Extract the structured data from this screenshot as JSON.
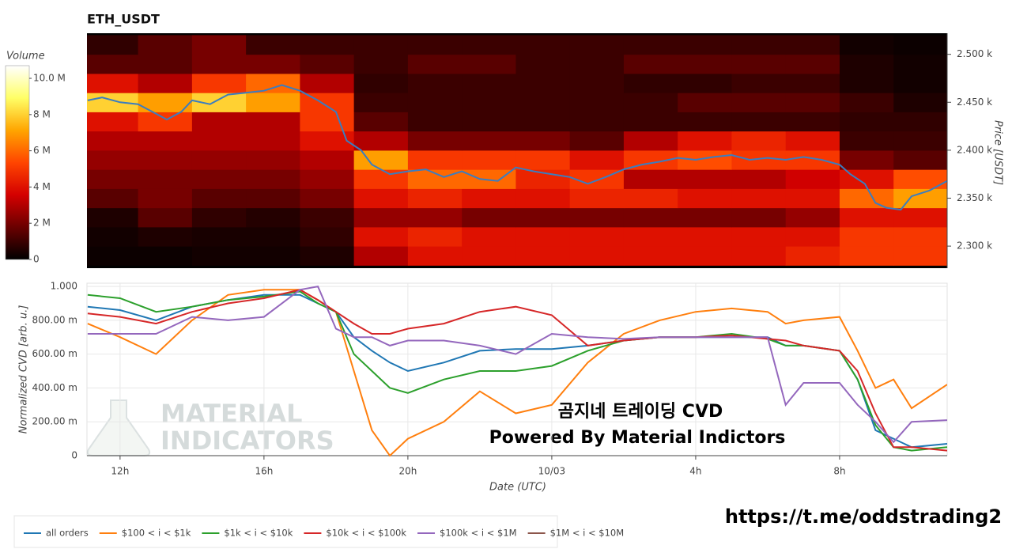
{
  "chart_data": [
    {
      "type": "heatmap",
      "title": "ETH_USDT",
      "ylabel": "Price [USDT]",
      "xlim": [
        11.08,
        34.99
      ],
      "ylim": [
        2277,
        2522
      ],
      "yticks": [
        {
          "value": 2300,
          "label": "2.300 k"
        },
        {
          "value": 2350,
          "label": "2.350 k"
        },
        {
          "value": 2400,
          "label": "2.400 k"
        },
        {
          "value": 2450,
          "label": "2.450 k"
        },
        {
          "value": 2500,
          "label": "2.500 k"
        }
      ],
      "x_bins": [
        11,
        12.5,
        14,
        15.5,
        17,
        18.5,
        20,
        21.5,
        23,
        24.5,
        26,
        27.5,
        29,
        30.5,
        32,
        33.5,
        35
      ],
      "y_bins": [
        2280,
        2300,
        2320,
        2340,
        2360,
        2380,
        2400,
        2420,
        2440,
        2460,
        2480,
        2500,
        2520
      ],
      "z": [
        [
          200000.0,
          200000.0,
          300000.0,
          300000.0,
          500000.0,
          3000000.0,
          4000000.0,
          4000000.0,
          4000000.0,
          4000000.0,
          4000000.0,
          4000000.0,
          4000000.0,
          4500000.0,
          5000000.0,
          5000000.0
        ],
        [
          300000.0,
          500000.0,
          400000.0,
          400000.0,
          800000.0,
          4000000.0,
          4500000.0,
          4000000.0,
          4000000.0,
          4000000.0,
          4000000.0,
          4000000.0,
          4000000.0,
          4000000.0,
          5000000.0,
          5000000.0
        ],
        [
          500000.0,
          1500000.0,
          800000.0,
          600000.0,
          1000000.0,
          2500000.0,
          2500000.0,
          2000000.0,
          2000000.0,
          2000000.0,
          2000000.0,
          2000000.0,
          2000000.0,
          2500000.0,
          4000000.0,
          4000000.0
        ],
        [
          1500000.0,
          2000000.0,
          1500000.0,
          1500000.0,
          2000000.0,
          4000000.0,
          4500000.0,
          4000000.0,
          4000000.0,
          4500000.0,
          4500000.0,
          4000000.0,
          4000000.0,
          4000000.0,
          6000000.0,
          7000000.0
        ],
        [
          2000000.0,
          2000000.0,
          2000000.0,
          2000000.0,
          2500000.0,
          5000000.0,
          6000000.0,
          6000000.0,
          4500000.0,
          5000000.0,
          3000000.0,
          3000000.0,
          3000000.0,
          3500000.0,
          4000000.0,
          5500000.0
        ],
        [
          2500000.0,
          2500000.0,
          2500000.0,
          2500000.0,
          3000000.0,
          7000000.0,
          5000000.0,
          5000000.0,
          5000000.0,
          4000000.0,
          5000000.0,
          5500000.0,
          5000000.0,
          5000000.0,
          2000000.0,
          1500000.0
        ],
        [
          3000000.0,
          3000000.0,
          3000000.0,
          3000000.0,
          4000000.0,
          3000000.0,
          2000000.0,
          2000000.0,
          2000000.0,
          1500000.0,
          3000000.0,
          4000000.0,
          4500000.0,
          4000000.0,
          1000000.0,
          1000000.0
        ],
        [
          4000000.0,
          5000000.0,
          3000000.0,
          3000000.0,
          5000000.0,
          1500000.0,
          1000000.0,
          1000000.0,
          1000000.0,
          1000000.0,
          1000000.0,
          1000000.0,
          1000000.0,
          1000000.0,
          800000.0,
          800000.0
        ],
        [
          8000000.0,
          7000000.0,
          8000000.0,
          7000000.0,
          5000000.0,
          1000000.0,
          1000000.0,
          1000000.0,
          1000000.0,
          1000000.0,
          1000000.0,
          1500000.0,
          1500000.0,
          1500000.0,
          1000000.0,
          500000.0
        ],
        [
          4000000.0,
          3000000.0,
          5000000.0,
          6000000.0,
          3000000.0,
          800000.0,
          1000000.0,
          1000000.0,
          1000000.0,
          1000000.0,
          800000.0,
          800000.0,
          1000000.0,
          1000000.0,
          500000.0,
          300000.0
        ],
        [
          1500000.0,
          1500000.0,
          2000000.0,
          2000000.0,
          1500000.0,
          1000000.0,
          1500000.0,
          1500000.0,
          1000000.0,
          1000000.0,
          1500000.0,
          1500000.0,
          1500000.0,
          1500000.0,
          500000.0,
          300000.0
        ],
        [
          800000.0,
          1500000.0,
          2000000.0,
          1000000.0,
          1000000.0,
          1000000.0,
          1000000.0,
          1000000.0,
          1000000.0,
          1000000.0,
          1000000.0,
          1000000.0,
          1000000.0,
          1000000.0,
          300000.0,
          200000.0
        ]
      ],
      "colorscale": [
        "#000000",
        "#6a0000",
        "#d40000",
        "#ff4500",
        "#ffa500",
        "#ffff66",
        "#ffffff"
      ],
      "colorbar": {
        "title": "Volume",
        "lim": [
          0,
          10700000
        ],
        "ticks": [
          0,
          {
            "value": 2000000,
            "label": "2 M"
          },
          {
            "value": 4000000,
            "label": "4 M"
          },
          {
            "value": 6000000,
            "label": "6 M"
          },
          {
            "value": 8000000,
            "label": "8 M"
          },
          {
            "value": 10000000,
            "label": "10.0 M"
          }
        ]
      },
      "line": {
        "color": "#3a7dc0",
        "x": [
          11.1,
          11.5,
          12,
          12.5,
          13,
          13.3,
          13.7,
          14,
          14.5,
          15,
          15.5,
          16,
          16.5,
          17,
          17.5,
          18,
          18.3,
          18.7,
          19,
          19.5,
          20,
          20.5,
          21,
          21.5,
          22,
          22.5,
          23,
          23.5,
          24,
          24.5,
          25,
          25.5,
          26,
          26.5,
          27,
          27.5,
          28,
          28.5,
          29,
          29.5,
          30,
          30.5,
          31,
          31.5,
          32,
          32.3,
          32.7,
          33,
          33.3,
          33.7,
          34,
          34.5,
          34.99
        ],
        "y": [
          2452,
          2455,
          2450,
          2448,
          2438,
          2432,
          2440,
          2452,
          2448,
          2458,
          2460,
          2462,
          2468,
          2462,
          2452,
          2440,
          2410,
          2400,
          2385,
          2375,
          2378,
          2380,
          2372,
          2378,
          2370,
          2368,
          2382,
          2378,
          2375,
          2372,
          2365,
          2372,
          2380,
          2385,
          2388,
          2392,
          2390,
          2393,
          2395,
          2390,
          2392,
          2390,
          2393,
          2390,
          2385,
          2375,
          2365,
          2345,
          2340,
          2338,
          2352,
          2358,
          2368
        ]
      }
    },
    {
      "type": "line",
      "xlabel": "Date (UTC)",
      "ylabel": "Normalized CVD [arb. u.]",
      "grid": true,
      "legend": "bottom-left",
      "xlim": [
        11.08,
        34.99
      ],
      "ylim": [
        0,
        1.019
      ],
      "xticks": [
        {
          "value": 12,
          "label": "12h"
        },
        {
          "value": 16,
          "label": "16h"
        },
        {
          "value": 20,
          "label": "20h"
        },
        {
          "value": 24,
          "label": "10/03"
        },
        {
          "value": 28,
          "label": "4h"
        },
        {
          "value": 32,
          "label": "8h"
        }
      ],
      "yticks": [
        0,
        {
          "value": 0.2,
          "label": "200.00 m"
        },
        {
          "value": 0.4,
          "label": "400.00 m"
        },
        {
          "value": 0.6,
          "label": "600.00 m"
        },
        {
          "value": 0.8,
          "label": "800.00 m"
        },
        {
          "value": 1,
          "label": "1.000"
        }
      ],
      "x": [
        11.1,
        12,
        13,
        14,
        15,
        16,
        17,
        17.5,
        18,
        18.5,
        19,
        19.5,
        20,
        21,
        22,
        23,
        24,
        25,
        26,
        27,
        28,
        29,
        30,
        30.5,
        31,
        32,
        32.5,
        33,
        33.5,
        34,
        34.99
      ],
      "series": [
        {
          "name": "all orders",
          "color": "#1f77b4",
          "values": [
            0.88,
            0.86,
            0.8,
            0.88,
            0.92,
            0.95,
            0.95,
            0.9,
            0.85,
            0.7,
            0.62,
            0.55,
            0.5,
            0.55,
            0.62,
            0.63,
            0.63,
            0.65,
            0.68,
            0.7,
            0.7,
            0.7,
            0.7,
            0.65,
            0.65,
            0.62,
            0.45,
            0.15,
            0.1,
            0.05,
            0.07
          ]
        },
        {
          "name": "$100 < i < $1k",
          "color": "#ff7f0e",
          "values": [
            0.78,
            0.7,
            0.6,
            0.8,
            0.95,
            0.98,
            0.98,
            0.92,
            0.85,
            0.5,
            0.15,
            0,
            0.1,
            0.2,
            0.38,
            0.25,
            0.3,
            0.55,
            0.72,
            0.8,
            0.85,
            0.87,
            0.85,
            0.78,
            0.8,
            0.82,
            0.62,
            0.4,
            0.45,
            0.28,
            0.42
          ]
        },
        {
          "name": "$1k < i < $10k",
          "color": "#2ca02c",
          "values": [
            0.95,
            0.93,
            0.85,
            0.88,
            0.92,
            0.94,
            0.97,
            0.9,
            0.85,
            0.6,
            0.5,
            0.4,
            0.37,
            0.45,
            0.5,
            0.5,
            0.53,
            0.62,
            0.68,
            0.7,
            0.7,
            0.72,
            0.69,
            0.65,
            0.65,
            0.62,
            0.45,
            0.18,
            0.05,
            0.03,
            0.05
          ]
        },
        {
          "name": "$10k < i < $100k",
          "color": "#d62728",
          "values": [
            0.84,
            0.82,
            0.78,
            0.85,
            0.9,
            0.93,
            0.98,
            0.92,
            0.85,
            0.78,
            0.72,
            0.72,
            0.75,
            0.78,
            0.85,
            0.88,
            0.83,
            0.65,
            0.68,
            0.7,
            0.7,
            0.71,
            0.69,
            0.68,
            0.65,
            0.62,
            0.5,
            0.25,
            0.05,
            0.05,
            0.03
          ]
        },
        {
          "name": "$100k < i < $1M",
          "color": "#9467bd",
          "values": [
            0.72,
            0.72,
            0.72,
            0.82,
            0.8,
            0.82,
            0.98,
            1.0,
            0.75,
            0.7,
            0.7,
            0.65,
            0.68,
            0.68,
            0.65,
            0.6,
            0.72,
            0.7,
            0.69,
            0.7,
            0.7,
            0.7,
            0.7,
            0.3,
            0.43,
            0.43,
            0.3,
            0.2,
            0.08,
            0.2,
            0.21
          ]
        },
        {
          "name": "$1M < i < $10M",
          "color": "#8c564b",
          "values": [
            null,
            null,
            null,
            null,
            null,
            null,
            null,
            null,
            null,
            null,
            null,
            null,
            null,
            null,
            null,
            null,
            null,
            null,
            null,
            null,
            null,
            null,
            null,
            null,
            null,
            null,
            null,
            null,
            null,
            null,
            null
          ]
        }
      ]
    }
  ],
  "watermark": [
    "MATERIAL",
    "INDICATORS"
  ],
  "annotations": [
    "곰지네 트레이딩 CVD",
    "Powered By Material Indictors"
  ],
  "footer": "https://t.me/oddstrading2"
}
